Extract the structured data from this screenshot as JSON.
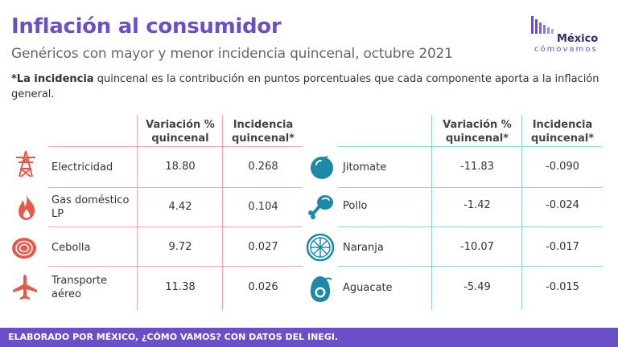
{
  "header": {
    "title": "Inflación al consumidor",
    "subtitle": "Genéricos con mayor y menor incidencia quincenal, octubre 2021"
  },
  "logo": {
    "name": "México",
    "sub": "cómovamos"
  },
  "note": {
    "prefix": "*La ",
    "bold": "incidencia",
    "rest": " quincenal es la contribución en puntos porcentuales que cada componente aporta a la inflación general."
  },
  "left_table": {
    "headers": [
      "Variación %\nquincenal",
      "Incidencia\nquincenal*"
    ],
    "rows": [
      {
        "label": "Electricidad",
        "icon": "electricity-tower-icon",
        "variacion": "18.80",
        "incidencia": "0.268"
      },
      {
        "label": "Gas doméstico LP",
        "icon": "flame-icon",
        "variacion": "4.42",
        "incidencia": "0.104"
      },
      {
        "label": "Cebolla",
        "icon": "onion-icon",
        "variacion": "9.72",
        "incidencia": "0.027"
      },
      {
        "label": "Transporte aéreo",
        "icon": "airplane-icon",
        "variacion": "11.38",
        "incidencia": "0.026"
      }
    ]
  },
  "right_table": {
    "headers": [
      "Variación %\nquincenal*",
      "Incidencia\nquincenal*"
    ],
    "rows": [
      {
        "label": "Jitomate",
        "icon": "tomato-icon",
        "variacion": "-11.83",
        "incidencia": "-0.090"
      },
      {
        "label": "Pollo",
        "icon": "chicken-leg-icon",
        "variacion": "-1.42",
        "incidencia": "-0.024"
      },
      {
        "label": "Naranja",
        "icon": "orange-slice-icon",
        "variacion": "-10.07",
        "incidencia": "-0.017"
      },
      {
        "label": "Aguacate",
        "icon": "avocado-icon",
        "variacion": "-5.49",
        "incidencia": "-0.015"
      }
    ]
  },
  "colors": {
    "accent": "#6a4fc8",
    "high": "#e8584a",
    "low": "#1c8aa6"
  },
  "footer": {
    "text": "ELABORADO POR MÉXICO, ¿CÓMO VAMOS? CON DATOS DEL INEGI."
  }
}
